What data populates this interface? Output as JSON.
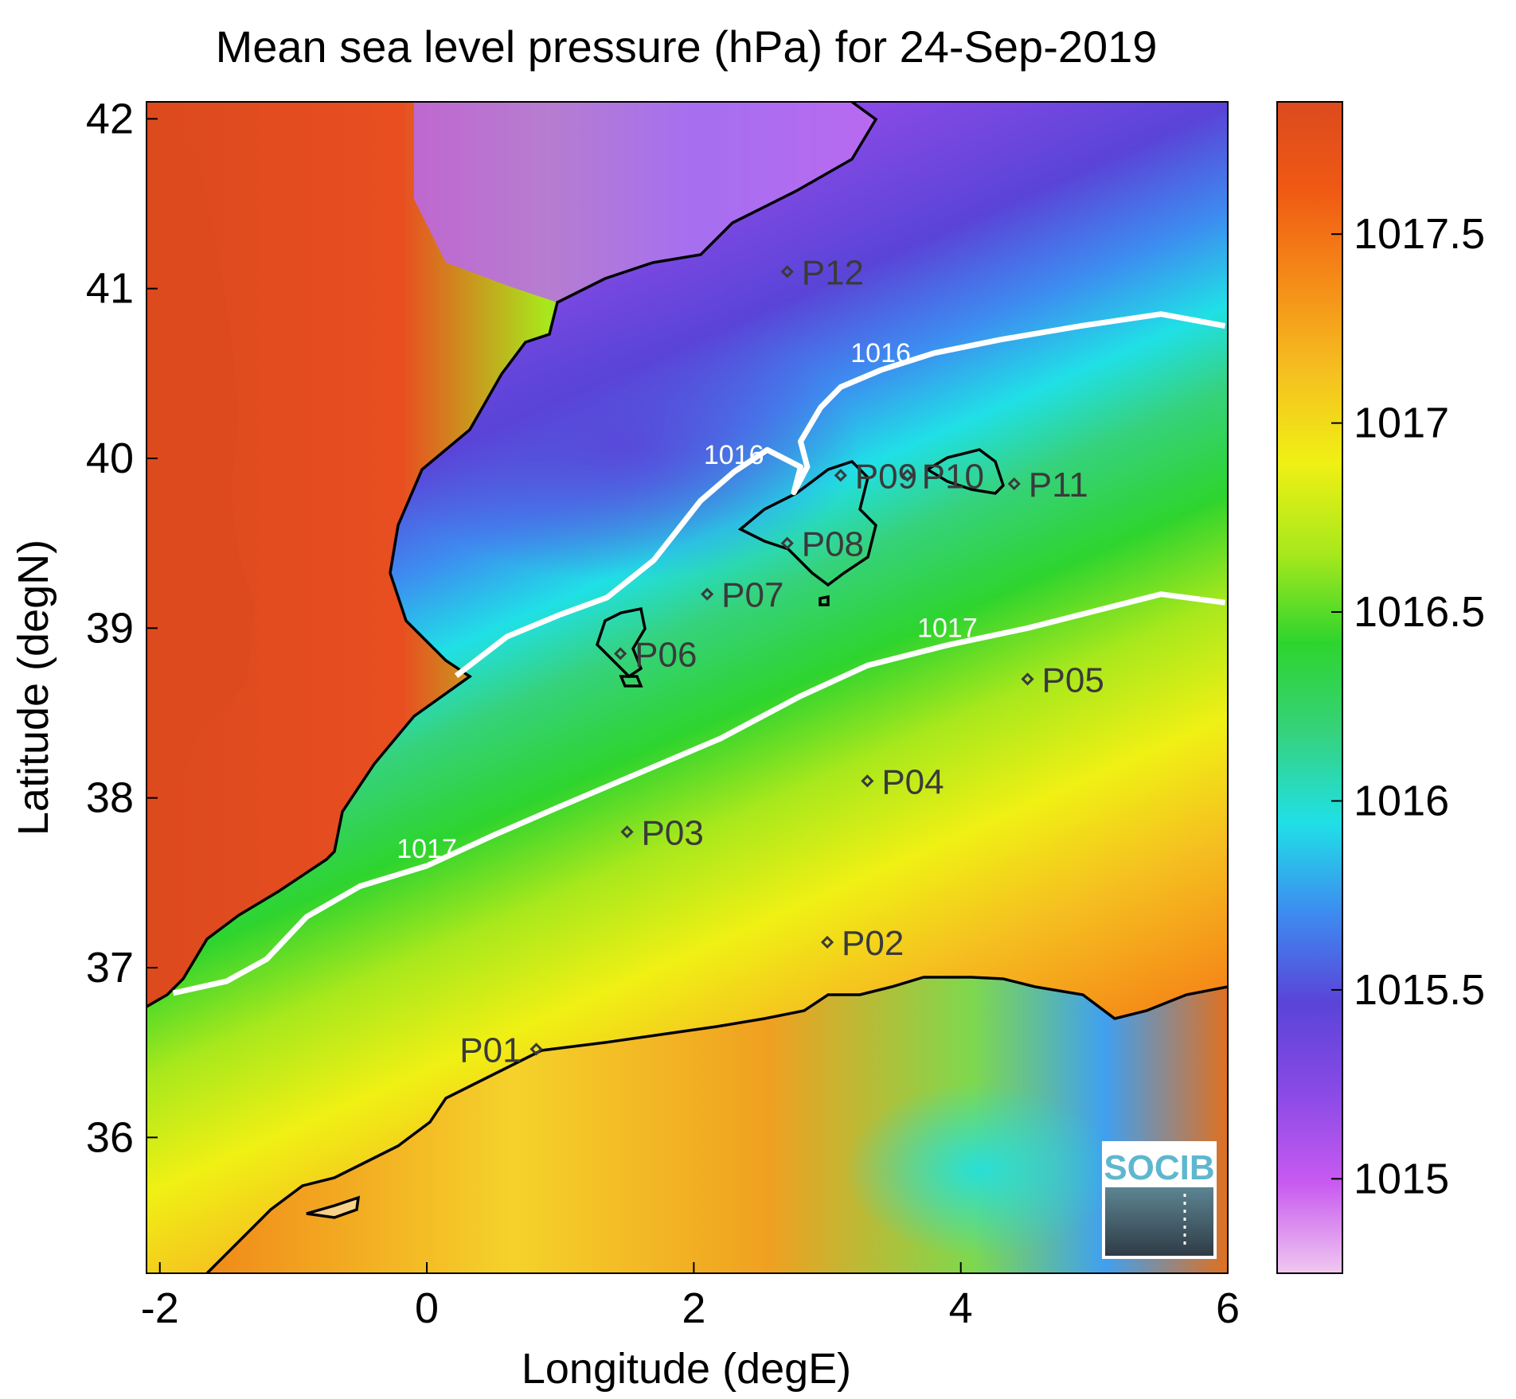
{
  "chart_data": {
    "type": "heatmap",
    "title": "Mean sea level pressure (hPa) for 24-Sep-2019",
    "xlabel": "Longitude (degE)",
    "ylabel": "Latitude (degN)",
    "xlim": [
      -2.1,
      6.0
    ],
    "ylim": [
      35.2,
      42.1
    ],
    "xticks": [
      -2,
      0,
      2,
      4,
      6
    ],
    "yticks": [
      36,
      37,
      38,
      39,
      40,
      41,
      42
    ],
    "colorbar": {
      "range": [
        1014.75,
        1017.85
      ],
      "ticks": [
        1015,
        1015.5,
        1016,
        1016.5,
        1017,
        1017.5
      ],
      "tick_labels": [
        "1015",
        "1015.5",
        "1016",
        "1016.5",
        "1017",
        "1017.5"
      ],
      "colormap": [
        "#f0c8f0",
        "#c85af0",
        "#8a4ae6",
        "#5a44d8",
        "#3d8cf0",
        "#20e0e6",
        "#36d27c",
        "#2ed42e",
        "#a8e81c",
        "#f0f014",
        "#f5c020",
        "#f58c18",
        "#f05a14",
        "#dc4a1e"
      ]
    },
    "contours": [
      {
        "level": 1016,
        "label": "1016",
        "color": "#ffffff",
        "points": [
          [
            0.22,
            38.72
          ],
          [
            0.6,
            38.95
          ],
          [
            1.0,
            39.08
          ],
          [
            1.35,
            39.18
          ],
          [
            1.7,
            39.4
          ],
          [
            2.05,
            39.75
          ],
          [
            2.3,
            39.92
          ],
          [
            2.55,
            40.05
          ],
          [
            2.8,
            39.95
          ],
          [
            2.75,
            39.8
          ],
          [
            2.85,
            39.95
          ],
          [
            2.8,
            40.1
          ],
          [
            2.95,
            40.3
          ],
          [
            3.1,
            40.42
          ],
          [
            3.4,
            40.52
          ],
          [
            3.8,
            40.62
          ],
          [
            4.3,
            40.7
          ],
          [
            4.9,
            40.78
          ],
          [
            5.5,
            40.85
          ],
          [
            5.98,
            40.78
          ]
        ]
      },
      {
        "level": 1017,
        "label": "1017",
        "color": "#ffffff",
        "points": [
          [
            -1.9,
            36.85
          ],
          [
            -1.5,
            36.92
          ],
          [
            -1.2,
            37.05
          ],
          [
            -0.9,
            37.3
          ],
          [
            -0.5,
            37.48
          ],
          [
            0.0,
            37.6
          ],
          [
            0.5,
            37.78
          ],
          [
            1.0,
            37.95
          ],
          [
            1.6,
            38.15
          ],
          [
            2.2,
            38.35
          ],
          [
            2.8,
            38.6
          ],
          [
            3.3,
            38.78
          ],
          [
            3.9,
            38.9
          ],
          [
            4.5,
            39.0
          ],
          [
            5.0,
            39.1
          ],
          [
            5.5,
            39.2
          ],
          [
            5.98,
            39.15
          ]
        ]
      }
    ],
    "points": [
      {
        "label": "P01",
        "lon": 0.82,
        "lat": 36.52
      },
      {
        "label": "P02",
        "lon": 3.0,
        "lat": 37.15
      },
      {
        "label": "P03",
        "lon": 1.5,
        "lat": 37.8
      },
      {
        "label": "P04",
        "lon": 3.3,
        "lat": 38.1
      },
      {
        "label": "P05",
        "lon": 4.5,
        "lat": 38.7
      },
      {
        "label": "P06",
        "lon": 1.45,
        "lat": 38.85
      },
      {
        "label": "P07",
        "lon": 2.1,
        "lat": 39.2
      },
      {
        "label": "P08",
        "lon": 2.7,
        "lat": 39.5
      },
      {
        "label": "P09",
        "lon": 3.1,
        "lat": 39.9
      },
      {
        "label": "P10",
        "lon": 3.6,
        "lat": 39.9
      },
      {
        "label": "P11",
        "lon": 4.4,
        "lat": 39.85
      },
      {
        "label": "P12",
        "lon": 2.7,
        "lat": 41.1
      }
    ]
  },
  "logo": {
    "text": "SOCIB"
  }
}
